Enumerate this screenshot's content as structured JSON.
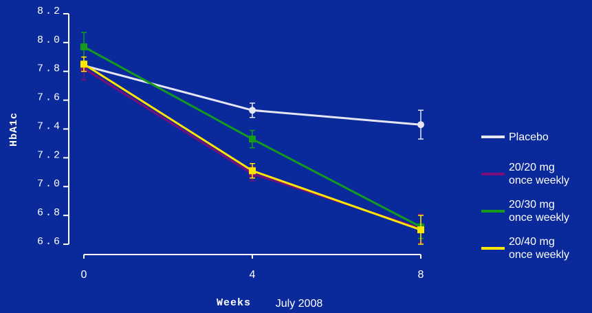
{
  "chart_data": {
    "type": "line",
    "y_label": "HbA1c",
    "x_label": "Weeks",
    "annotation": "July 2008",
    "x": [
      0,
      4,
      8
    ],
    "xlim": [
      0,
      8
    ],
    "xticks": [
      0,
      4,
      8
    ],
    "ylim": [
      6.6,
      8.2
    ],
    "yticks": [
      6.6,
      6.8,
      {
        "value": 7,
        "label": "7.0"
      },
      7.2,
      7.4,
      7.6,
      7.8,
      {
        "value": 8,
        "label": "8.0"
      },
      8.2
    ],
    "background": "#0a2a9c",
    "series": [
      {
        "name": "Placebo",
        "color": "#e6e6f2",
        "marker": "circle",
        "values": [
          7.84,
          7.53,
          7.43
        ],
        "errors": [
          0.03,
          0.05,
          0.1
        ]
      },
      {
        "name": "20/20 mg\nonce weekly",
        "color": "#7a0f7a",
        "marker": "square",
        "values": [
          7.82,
          7.09,
          6.71
        ],
        "errors": [
          0.08,
          0.05,
          0.1
        ]
      },
      {
        "name": "20/30 mg\nonce weekly",
        "color": "#159a1e",
        "marker": "square",
        "values": [
          7.97,
          7.33,
          6.72
        ],
        "errors": [
          0.1,
          0.06,
          0.08
        ]
      },
      {
        "name": "20/40 mg\nonce weekly",
        "color": "#ffe600",
        "marker": "square",
        "values": [
          7.85,
          7.11,
          6.7
        ],
        "errors": [
          0.05,
          0.05,
          0.1
        ]
      }
    ]
  }
}
